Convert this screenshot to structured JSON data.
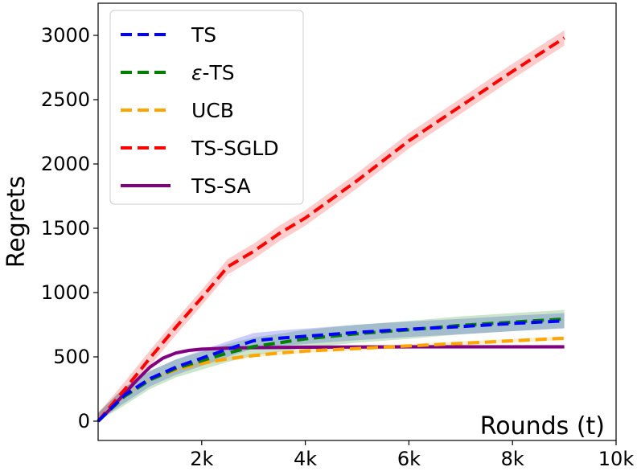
{
  "chart_data": {
    "type": "line",
    "title": "",
    "xlabel": "Rounds (t)",
    "ylabel": "Regrets",
    "xlim": [
      0,
      10000
    ],
    "ylim": [
      -150,
      3250
    ],
    "grid": false,
    "legend_position": "top-left",
    "x_ticks": [
      {
        "value": 2000,
        "label": "2k"
      },
      {
        "value": 4000,
        "label": "4k"
      },
      {
        "value": 6000,
        "label": "6k"
      },
      {
        "value": 8000,
        "label": "8k"
      },
      {
        "value": 10000,
        "label": "10k"
      }
    ],
    "y_ticks": [
      {
        "value": 0,
        "label": "0"
      },
      {
        "value": 500,
        "label": "500"
      },
      {
        "value": 1000,
        "label": "1000"
      },
      {
        "value": 1500,
        "label": "1500"
      },
      {
        "value": 2000,
        "label": "2000"
      },
      {
        "value": 2500,
        "label": "2500"
      },
      {
        "value": 3000,
        "label": "3000"
      }
    ],
    "series": [
      {
        "name": "TS",
        "label_prefix": "",
        "label_rest": "TS",
        "color": "#0000ff",
        "style": "dashed",
        "band": 60,
        "x": [
          0,
          500,
          1000,
          1500,
          2000,
          2500,
          3000,
          3500,
          4000,
          5000,
          6000,
          7000,
          8000,
          9000
        ],
        "y": [
          0,
          200,
          330,
          420,
          490,
          560,
          625,
          645,
          660,
          690,
          715,
          735,
          760,
          780
        ]
      },
      {
        "name": "ε-TS",
        "label_prefix": "ε",
        "label_rest": "-TS",
        "color": "#008000",
        "style": "dashed",
        "band": 70,
        "x": [
          0,
          500,
          1000,
          1500,
          2000,
          2500,
          3000,
          3500,
          4000,
          5000,
          6000,
          7000,
          8000,
          9000
        ],
        "y": [
          0,
          190,
          320,
          410,
          470,
          530,
          580,
          610,
          640,
          680,
          710,
          745,
          770,
          795
        ]
      },
      {
        "name": "UCB",
        "label_prefix": "",
        "label_rest": "UCB",
        "color": "#ffa500",
        "style": "dashed",
        "band": 15,
        "x": [
          0,
          500,
          1000,
          1500,
          2000,
          2500,
          3000,
          3500,
          4000,
          5000,
          6000,
          7000,
          8000,
          9000
        ],
        "y": [
          0,
          195,
          325,
          400,
          450,
          485,
          510,
          530,
          545,
          565,
          585,
          605,
          625,
          645
        ]
      },
      {
        "name": "TS-SGLD",
        "label_prefix": "",
        "label_rest": "TS-SGLD",
        "color": "#ff0000",
        "style": "dashed",
        "band": 60,
        "x": [
          0,
          500,
          1000,
          1500,
          2000,
          2500,
          3000,
          3500,
          4000,
          5000,
          6000,
          7000,
          8000,
          9000
        ],
        "y": [
          0,
          240,
          490,
          730,
          960,
          1200,
          1320,
          1460,
          1580,
          1870,
          2180,
          2450,
          2720,
          2980
        ]
      },
      {
        "name": "TS-SA",
        "label_prefix": "",
        "label_rest": "TS-SA",
        "color": "#800080",
        "style": "solid",
        "band": 15,
        "x": [
          0,
          250,
          500,
          750,
          1000,
          1250,
          1500,
          1750,
          2000,
          2500,
          3000,
          4000,
          5000,
          6000,
          7000,
          8000,
          9000
        ],
        "y": [
          0,
          100,
          210,
          320,
          420,
          490,
          530,
          550,
          560,
          568,
          572,
          575,
          577,
          578,
          578,
          578,
          578
        ]
      }
    ]
  }
}
